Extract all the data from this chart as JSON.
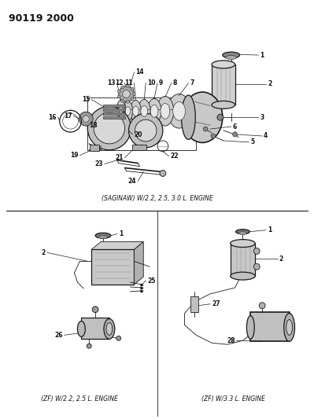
{
  "title": "90119 2000",
  "bg_color": "#ffffff",
  "line_color": "#1a1a1a",
  "text_color": "#111111",
  "top_label": "(SAGINAW) W/2.2, 2.5, 3.0 L. ENGINE",
  "bottom_left_label": "(ZF) W/2.2, 2.5 L. ENGINE",
  "bottom_right_label": "(ZF) W/3.3 L. ENGINE",
  "font_size_title": 9,
  "font_size_label": 5.5,
  "font_size_part": 5.5
}
